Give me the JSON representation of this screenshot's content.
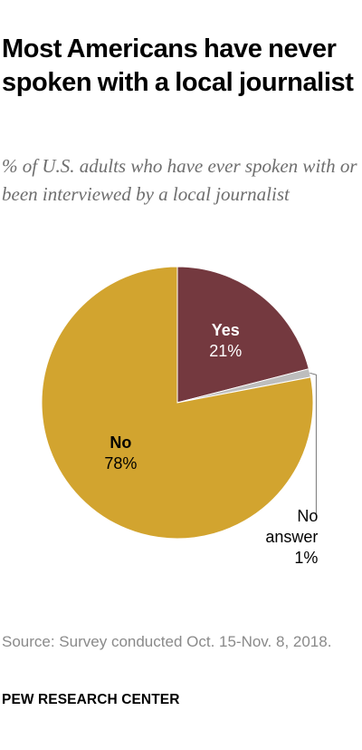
{
  "header": {
    "title": "Most Americans have never spoken with a local journalist",
    "subtitle": "% of U.S. adults who have ever spoken with or been interviewed by a local journalist"
  },
  "chart_data": {
    "type": "pie",
    "slices": [
      {
        "label": "Yes",
        "value": 21,
        "value_label": "21%",
        "color": "#74393f",
        "label_color": "#ffffff"
      },
      {
        "label": "No answer",
        "value": 1,
        "value_label": "1%",
        "color": "#bdbdbd",
        "label_color": "#000000"
      },
      {
        "label": "No",
        "value": 78,
        "value_label": "78%",
        "color": "#d2a42f",
        "label_color": "#000000"
      }
    ]
  },
  "footer": {
    "source": "Source: Survey conducted Oct. 15-Nov. 8, 2018.",
    "brand": "PEW RESEARCH CENTER"
  }
}
